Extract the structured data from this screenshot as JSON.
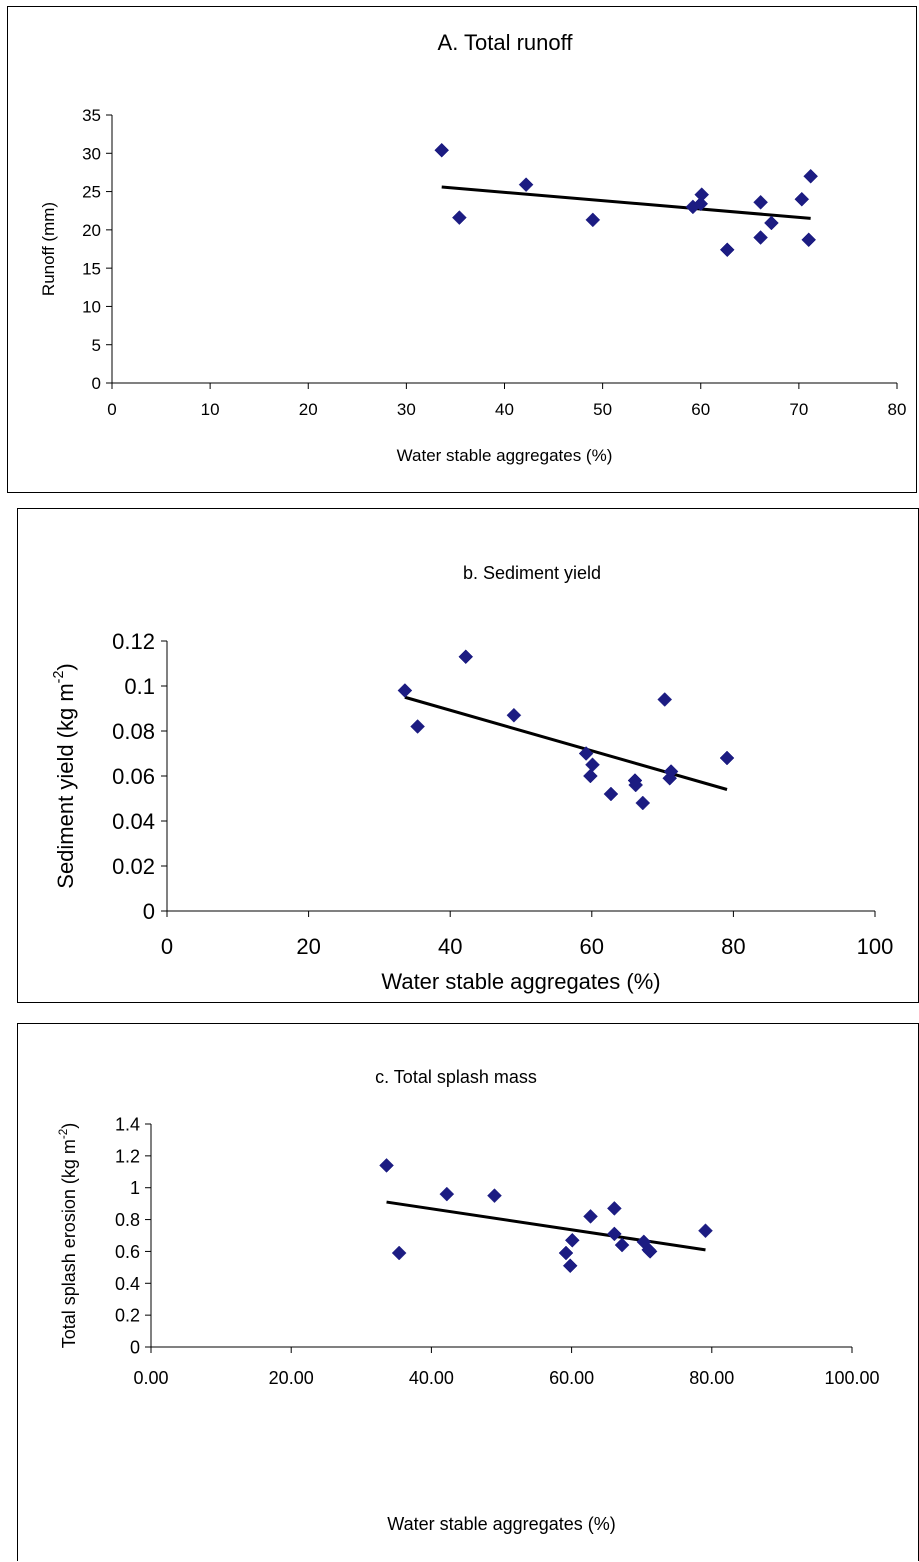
{
  "chart_data": [
    {
      "type": "scatter",
      "title": "A. Total runoff",
      "xlabel": "Water stable aggregates (%)",
      "ylabel": "Runoff (mm)",
      "ylabel_sup": "",
      "ylabel_tail": "",
      "xlim": [
        0,
        80
      ],
      "ylim": [
        0,
        35
      ],
      "xticks": [
        0,
        10,
        20,
        30,
        40,
        50,
        60,
        70,
        80
      ],
      "xtick_labels": [
        "0",
        "10",
        "20",
        "30",
        "40",
        "50",
        "60",
        "70",
        "80"
      ],
      "yticks": [
        0,
        5,
        10,
        15,
        20,
        25,
        30,
        35
      ],
      "ytick_labels": [
        "0",
        "5",
        "10",
        "15",
        "20",
        "25",
        "30",
        "35"
      ],
      "grid": false,
      "legend": "none",
      "marker": "diamond",
      "marker_color": "#1c1c82",
      "trend_color": "#000000",
      "points": [
        {
          "x": 33.6,
          "y": 30.4
        },
        {
          "x": 35.4,
          "y": 21.6
        },
        {
          "x": 42.2,
          "y": 25.9
        },
        {
          "x": 49.0,
          "y": 21.3
        },
        {
          "x": 59.2,
          "y": 23.0
        },
        {
          "x": 60.0,
          "y": 23.4
        },
        {
          "x": 60.1,
          "y": 24.6
        },
        {
          "x": 62.7,
          "y": 17.4
        },
        {
          "x": 66.1,
          "y": 23.6
        },
        {
          "x": 66.1,
          "y": 19.0
        },
        {
          "x": 67.2,
          "y": 20.9
        },
        {
          "x": 70.3,
          "y": 24.0
        },
        {
          "x": 71.0,
          "y": 18.7
        },
        {
          "x": 71.2,
          "y": 27.0
        }
      ],
      "trendline": {
        "x": [
          33.6,
          71.2
        ],
        "y": [
          25.6,
          21.5
        ]
      }
    },
    {
      "type": "scatter",
      "title": "b. Sediment yield",
      "xlabel": "Water stable aggregates (%)",
      "ylabel": "Sediment yield  (kg m",
      "ylabel_sup": "-2",
      "ylabel_tail": ")",
      "xlim": [
        0,
        100
      ],
      "ylim": [
        0,
        0.12
      ],
      "xticks": [
        0,
        20,
        40,
        60,
        80,
        100
      ],
      "xtick_labels": [
        "0",
        "20",
        "40",
        "60",
        "80",
        "100"
      ],
      "yticks": [
        0,
        0.02,
        0.04,
        0.06,
        0.08,
        0.1,
        0.12
      ],
      "ytick_labels": [
        "0",
        "0.02",
        "0.04",
        "0.06",
        "0.08",
        "0.1",
        "0.12"
      ],
      "grid": false,
      "legend": "none",
      "marker": "diamond",
      "marker_color": "#1c1c82",
      "trend_color": "#000000",
      "points": [
        {
          "x": 33.6,
          "y": 0.098
        },
        {
          "x": 35.4,
          "y": 0.082
        },
        {
          "x": 42.2,
          "y": 0.113
        },
        {
          "x": 49.0,
          "y": 0.087
        },
        {
          "x": 59.2,
          "y": 0.07
        },
        {
          "x": 59.8,
          "y": 0.06
        },
        {
          "x": 60.1,
          "y": 0.065
        },
        {
          "x": 62.7,
          "y": 0.052
        },
        {
          "x": 66.1,
          "y": 0.058
        },
        {
          "x": 66.2,
          "y": 0.056
        },
        {
          "x": 67.2,
          "y": 0.048
        },
        {
          "x": 70.3,
          "y": 0.094
        },
        {
          "x": 71.0,
          "y": 0.059
        },
        {
          "x": 71.2,
          "y": 0.062
        },
        {
          "x": 79.1,
          "y": 0.068
        }
      ],
      "trendline": {
        "x": [
          33.6,
          79.1
        ],
        "y": [
          0.095,
          0.054
        ]
      }
    },
    {
      "type": "scatter",
      "title": "c. Total splash mass",
      "xlabel": "Water stable aggregates (%)",
      "ylabel": "Total splash erosion (kg m",
      "ylabel_sup": "-2",
      "ylabel_tail": ")",
      "xlim": [
        0,
        100
      ],
      "ylim": [
        0,
        1.4
      ],
      "xticks": [
        0,
        20,
        40,
        60,
        80,
        100
      ],
      "xtick_labels": [
        "0.00",
        "20.00",
        "40.00",
        "60.00",
        "80.00",
        "100.00"
      ],
      "yticks": [
        0,
        0.2,
        0.4,
        0.6,
        0.8,
        1.0,
        1.2,
        1.4
      ],
      "ytick_labels": [
        "0",
        "0.2",
        "0.4",
        "0.6",
        "0.8",
        "1",
        "1.2",
        "1.4"
      ],
      "grid": false,
      "legend": "none",
      "marker": "diamond",
      "marker_color": "#1c1c82",
      "trend_color": "#000000",
      "points": [
        {
          "x": 33.6,
          "y": 1.14
        },
        {
          "x": 35.4,
          "y": 0.59
        },
        {
          "x": 42.2,
          "y": 0.96
        },
        {
          "x": 49.0,
          "y": 0.95
        },
        {
          "x": 59.2,
          "y": 0.59
        },
        {
          "x": 59.8,
          "y": 0.51
        },
        {
          "x": 60.1,
          "y": 0.67
        },
        {
          "x": 62.7,
          "y": 0.82
        },
        {
          "x": 66.1,
          "y": 0.87
        },
        {
          "x": 66.1,
          "y": 0.71
        },
        {
          "x": 67.2,
          "y": 0.64
        },
        {
          "x": 70.3,
          "y": 0.66
        },
        {
          "x": 71.0,
          "y": 0.61
        },
        {
          "x": 71.2,
          "y": 0.6
        },
        {
          "x": 79.1,
          "y": 0.73
        }
      ],
      "trendline": {
        "x": [
          33.6,
          79.1
        ],
        "y": [
          0.91,
          0.61
        ]
      }
    }
  ]
}
